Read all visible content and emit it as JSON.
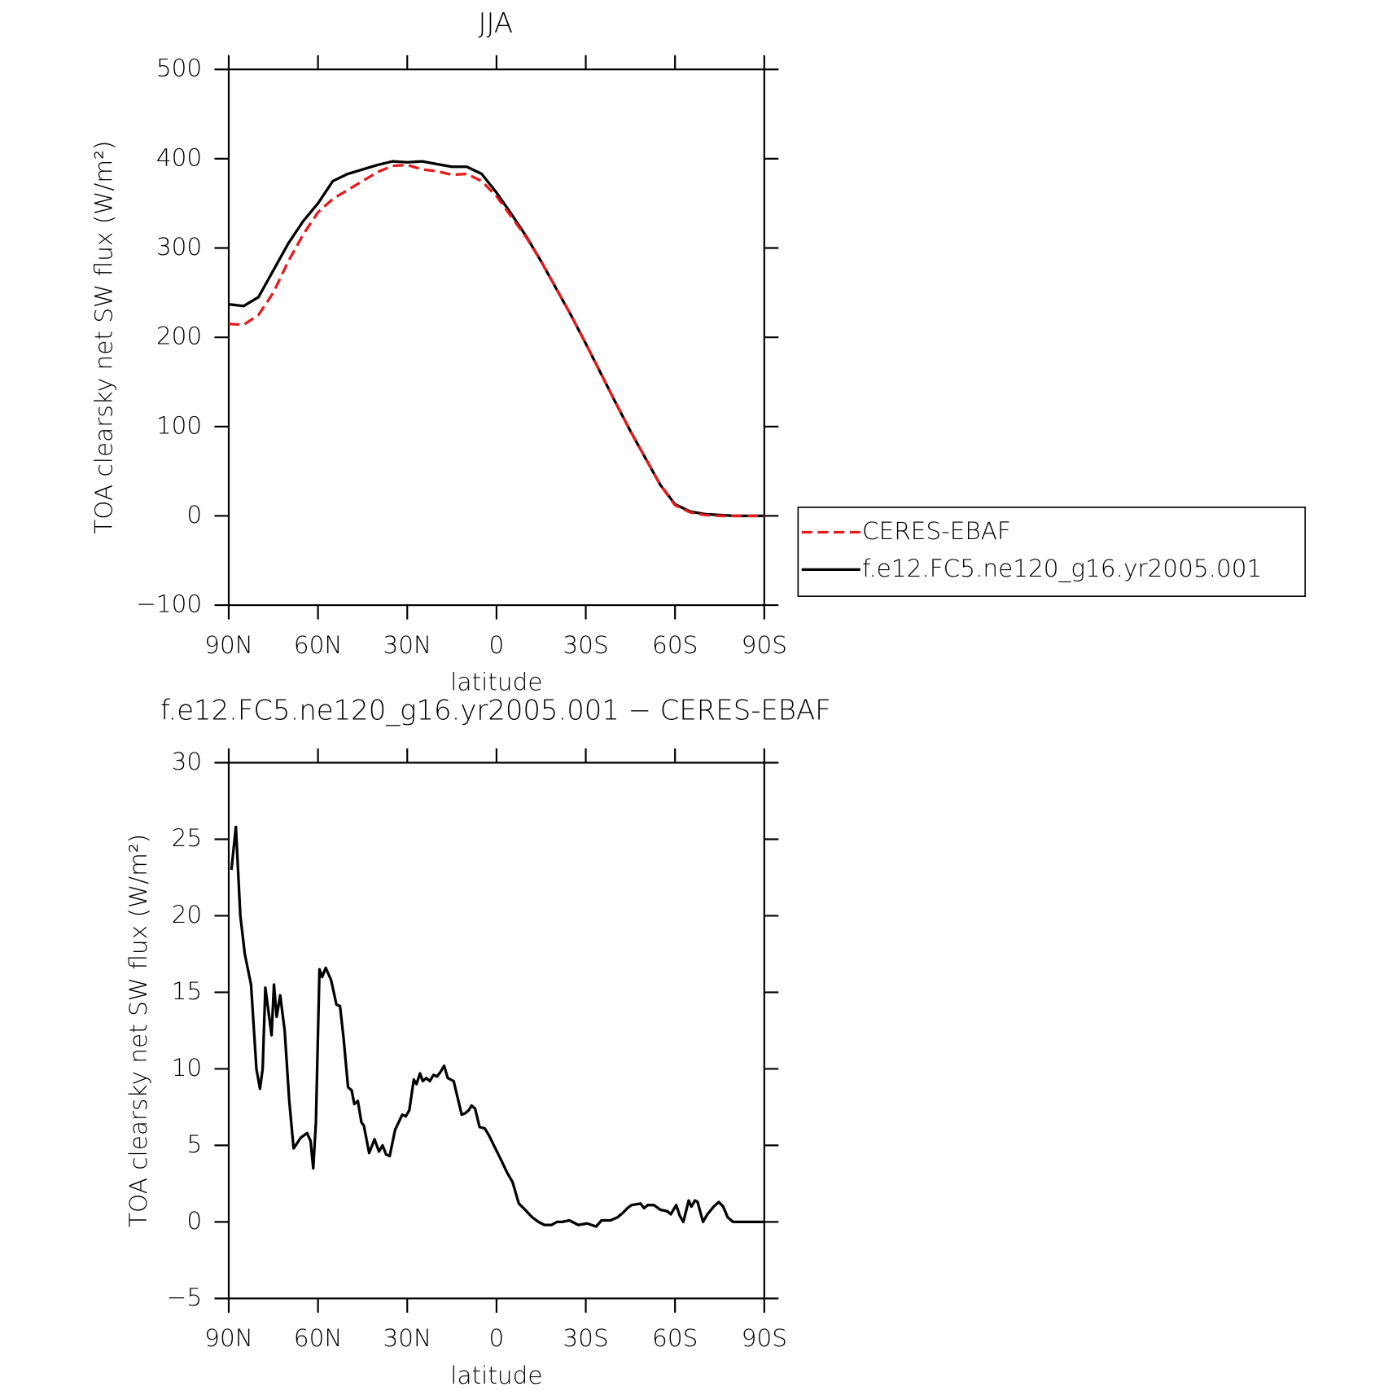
{
  "chart_data": [
    {
      "type": "line",
      "title": "JJA",
      "xlabel": "latitude",
      "ylabel": "TOA clearsky net SW flux (W/m²)",
      "x": [
        90,
        85,
        80,
        75,
        70,
        65,
        60,
        55,
        50,
        45,
        40,
        35,
        30,
        25,
        20,
        15,
        10,
        5,
        0,
        -5,
        -10,
        -15,
        -20,
        -25,
        -30,
        -35,
        -40,
        -45,
        -50,
        -55,
        -60,
        -65,
        -70,
        -75,
        -80,
        -85,
        -90
      ],
      "series": [
        {
          "name": "CERES-EBAF",
          "color": "#e41a1c",
          "linestyle": "dashed",
          "values": [
            215,
            214,
            225,
            250,
            285,
            315,
            340,
            355,
            365,
            375,
            385,
            392,
            393,
            388,
            386,
            382,
            383,
            375,
            358,
            335,
            312,
            285,
            255,
            225,
            193,
            160,
            127,
            95,
            65,
            35,
            12,
            4,
            1,
            0,
            0,
            0,
            0
          ]
        },
        {
          "name": "f.e12.FC5.ne120_g16.yr2005.001",
          "color": "#000000",
          "linestyle": "solid",
          "values": [
            237,
            235,
            245,
            275,
            305,
            330,
            350,
            375,
            383,
            388,
            393,
            397,
            396,
            397,
            394,
            391,
            391,
            383,
            362,
            338,
            313,
            285,
            255,
            225,
            193,
            160,
            127,
            95,
            65,
            35,
            13,
            5,
            2,
            1,
            0,
            0,
            0
          ]
        }
      ],
      "xlim": [
        90,
        -90
      ],
      "xticks": [
        {
          "value": 90,
          "label": "90N"
        },
        {
          "value": 60,
          "label": "60N"
        },
        {
          "value": 30,
          "label": "30N"
        },
        0,
        {
          "value": -30,
          "label": "30S"
        },
        {
          "value": -60,
          "label": "60S"
        },
        {
          "value": -90,
          "label": "90S"
        }
      ],
      "ylim": [
        -100,
        500
      ],
      "yticks": [
        {
          "value": -100,
          "label": "−100"
        },
        0,
        100,
        200,
        300,
        400,
        500
      ],
      "legend": "outside-right"
    },
    {
      "type": "line",
      "title": "f.e12.FC5.ne120_g16.yr2005.001 − CERES-EBAF",
      "xlabel": "latitude",
      "ylabel": "TOA clearsky net SW flux (W/m²)",
      "x": [
        89.1,
        87.6,
        86.1,
        84.6,
        82.5,
        80.7,
        79.5,
        78.6,
        77.7,
        75.6,
        74.8,
        73.9,
        72.7,
        71.2,
        69.7,
        68.2,
        65.8,
        63.7,
        62.5,
        61.6,
        60.7,
        59.5,
        58.6,
        57.4,
        55.6,
        53.8,
        52.6,
        51.4,
        49.9,
        48.7,
        47.8,
        46.6,
        45.4,
        44.6,
        42.8,
        41.0,
        39.5,
        38.3,
        37.1,
        35.9,
        34.1,
        31.7,
        30.5,
        29.3,
        27.8,
        26.9,
        25.7,
        24.8,
        23.6,
        22.4,
        21.2,
        20.0,
        18.8,
        17.6,
        16.4,
        14.4,
        11.7,
        10.5,
        9.3,
        8.4,
        7.2,
        5.7,
        3.9,
        2.4,
        0.9,
        -0.9,
        -2.4,
        -3.6,
        -5.4,
        -7.5,
        -9.6,
        -12.0,
        -14.1,
        -16.1,
        -18.5,
        -20.3,
        -22.1,
        -24.5,
        -27.5,
        -30.5,
        -33.5,
        -35.3,
        -38.3,
        -40.7,
        -42.5,
        -44.0,
        -45.4,
        -48.4,
        -49.6,
        -50.8,
        -52.9,
        -55.0,
        -57.4,
        -58.6,
        -60.4,
        -61.6,
        -62.8,
        -64.6,
        -65.5,
        -66.7,
        -67.6,
        -69.4,
        -70.9,
        -73.0,
        -74.7,
        -76.2,
        -77.7,
        -79.5,
        -84.3,
        -90.0
      ],
      "values": [
        23,
        25.8,
        20,
        17.5,
        15.5,
        10,
        8.7,
        10,
        15.3,
        12.2,
        15.5,
        13.4,
        14.8,
        12.5,
        8,
        4.8,
        5.5,
        5.8,
        5.3,
        3.5,
        6.5,
        16.5,
        16,
        16.6,
        15.8,
        14.2,
        14.1,
        12,
        8.8,
        8.6,
        7.7,
        7.9,
        6.5,
        6.3,
        4.5,
        5.4,
        4.6,
        5,
        4.4,
        4.3,
        6,
        7,
        6.9,
        7.3,
        9.3,
        9,
        9.7,
        9.2,
        9.4,
        9.2,
        9.6,
        9.5,
        9.8,
        10.2,
        9.4,
        9.2,
        7,
        7.1,
        7.3,
        7.6,
        7.4,
        6.2,
        6.1,
        5.6,
        5,
        4.3,
        3.7,
        3.2,
        2.6,
        1.2,
        0.8,
        0.3,
        0,
        -0.2,
        -0.2,
        0,
        0,
        0.1,
        -0.2,
        -0.1,
        -0.3,
        0.1,
        0.1,
        0.3,
        0.6,
        0.9,
        1.1,
        1.2,
        0.9,
        1.1,
        1.1,
        0.8,
        0.7,
        0.5,
        1.1,
        0.4,
        0,
        1.4,
        1,
        1.4,
        1.3,
        0,
        0.5,
        1,
        1.3,
        1,
        0.3,
        0,
        0,
        0
      ],
      "color": "#000000",
      "xlim": [
        90,
        -90
      ],
      "xticks": [
        {
          "value": 90,
          "label": "90N"
        },
        {
          "value": 60,
          "label": "60N"
        },
        {
          "value": 30,
          "label": "30N"
        },
        0,
        {
          "value": -30,
          "label": "30S"
        },
        {
          "value": -60,
          "label": "60S"
        },
        {
          "value": -90,
          "label": "90S"
        }
      ],
      "ylim": [
        -5,
        30
      ],
      "yticks": [
        {
          "value": -5,
          "label": "−5"
        },
        0,
        5,
        10,
        15,
        20,
        25,
        30
      ]
    }
  ]
}
